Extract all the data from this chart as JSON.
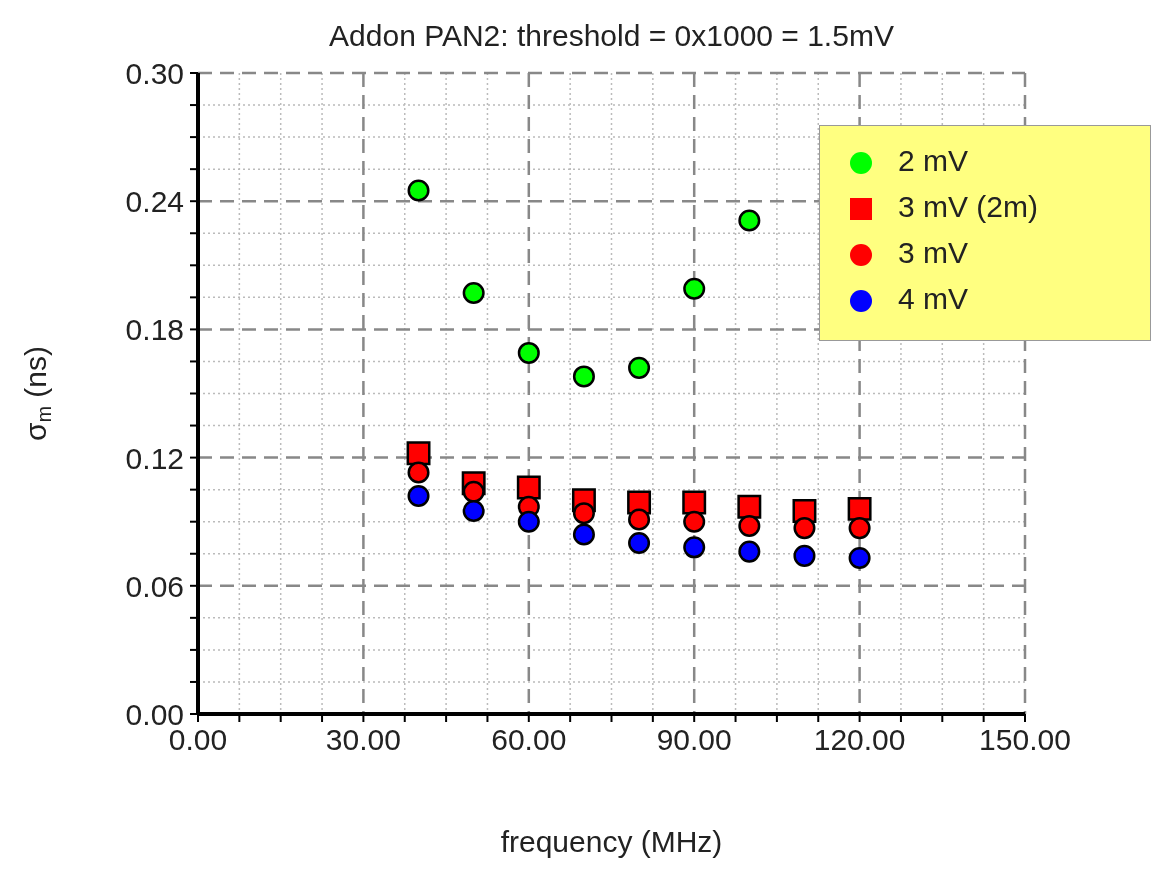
{
  "chart_data": {
    "type": "scatter",
    "title": "Addon PAN2: threshold = 0x1000 = 1.5mV",
    "xlabel": "frequency (MHz)",
    "ylabel": "σ$_{m}$ (ns)",
    "x": [
      40,
      50,
      60,
      70,
      80,
      90,
      100,
      110,
      120
    ],
    "series": [
      {
        "name": "2 mV",
        "color": "#00ff00",
        "marker": "circle",
        "x": [
          40,
          50,
          60,
          70,
          80,
          90,
          100
        ],
        "values": [
          0.245,
          0.197,
          0.169,
          0.158,
          0.162,
          0.199,
          0.231
        ]
      },
      {
        "name": "3 mV (2m)",
        "color": "#ff0000",
        "marker": "square",
        "values": [
          0.122,
          0.108,
          0.106,
          0.1,
          0.099,
          0.099,
          0.097,
          0.095,
          0.096
        ]
      },
      {
        "name": "3 mV",
        "color": "#ff0000",
        "marker": "circle",
        "values": [
          0.113,
          0.104,
          0.097,
          0.094,
          0.091,
          0.09,
          0.088,
          0.087,
          0.087
        ]
      },
      {
        "name": "4 mV",
        "color": "#0000ff",
        "marker": "circle",
        "values": [
          0.102,
          0.095,
          0.09,
          0.084,
          0.08,
          0.078,
          0.076,
          0.074,
          0.073
        ]
      }
    ],
    "xlim": [
      0,
      150
    ],
    "xticks": [
      {
        "value": 0,
        "label": "0.00"
      },
      {
        "value": 7.5,
        "label": null
      },
      {
        "value": 15,
        "label": null
      },
      {
        "value": 22.5,
        "label": null
      },
      {
        "value": 30,
        "label": "30.00"
      },
      {
        "value": 37.5,
        "label": null
      },
      {
        "value": 45,
        "label": null
      },
      {
        "value": 52.5,
        "label": null
      },
      {
        "value": 60,
        "label": "60.00"
      },
      {
        "value": 67.5,
        "label": null
      },
      {
        "value": 75,
        "label": null
      },
      {
        "value": 82.5,
        "label": null
      },
      {
        "value": 90,
        "label": "90.00"
      },
      {
        "value": 97.5,
        "label": null
      },
      {
        "value": 105,
        "label": null
      },
      {
        "value": 112.5,
        "label": null
      },
      {
        "value": 120,
        "label": "120.00"
      },
      {
        "value": 127.5,
        "label": null
      },
      {
        "value": 135,
        "label": null
      },
      {
        "value": 142.5,
        "label": null
      },
      {
        "value": 150,
        "label": "150.00"
      }
    ],
    "ylim": [
      0,
      0.3
    ],
    "yticks": [
      {
        "value": 0,
        "label": "0.00"
      },
      {
        "value": 0.015,
        "label": null
      },
      {
        "value": 0.03,
        "label": null
      },
      {
        "value": 0.045,
        "label": null
      },
      {
        "value": 0.06,
        "label": "0.06"
      },
      {
        "value": 0.075,
        "label": null
      },
      {
        "value": 0.09,
        "label": null
      },
      {
        "value": 0.105,
        "label": null
      },
      {
        "value": 0.12,
        "label": "0.12"
      },
      {
        "value": 0.135,
        "label": null
      },
      {
        "value": 0.15,
        "label": null
      },
      {
        "value": 0.165,
        "label": null
      },
      {
        "value": 0.18,
        "label": "0.18"
      },
      {
        "value": 0.195,
        "label": null
      },
      {
        "value": 0.21,
        "label": null
      },
      {
        "value": 0.225,
        "label": null
      },
      {
        "value": 0.24,
        "label": "0.24"
      },
      {
        "value": 0.255,
        "label": null
      },
      {
        "value": 0.27,
        "label": null
      },
      {
        "value": 0.285,
        "label": null
      },
      {
        "value": 0.3,
        "label": "0.30"
      }
    ],
    "grid": true,
    "legend": "top right"
  }
}
